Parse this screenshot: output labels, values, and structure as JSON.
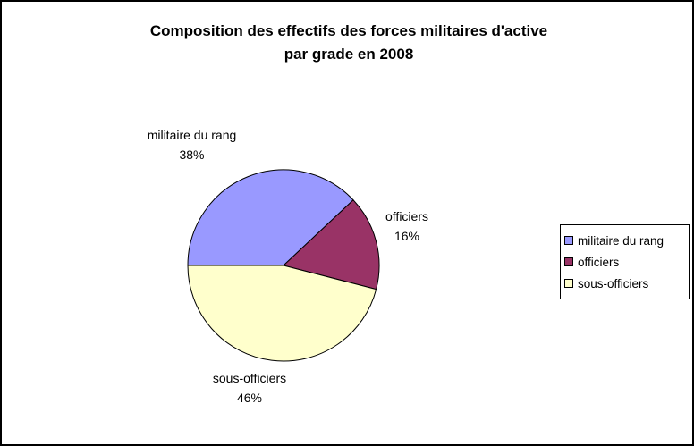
{
  "title": {
    "line1": "Composition des effectifs des forces militaires d'active",
    "line2": "par grade en 2008"
  },
  "chart_data": {
    "type": "pie",
    "title": "Composition des effectifs des forces militaires d'active par grade en 2008",
    "categories": [
      "militaire du rang",
      "officiers",
      "sous-officiers"
    ],
    "values": [
      38,
      16,
      46
    ],
    "colors": [
      "#9999FF",
      "#993366",
      "#FFFFCC"
    ],
    "start_angle_clockwise_from_top_deg": 270,
    "legend_position": "right",
    "slice_labels": [
      {
        "name": "militaire du rang",
        "pct": "38%"
      },
      {
        "name": "officiers",
        "pct": "16%"
      },
      {
        "name": "sous-officiers",
        "pct": "46%"
      }
    ]
  },
  "legend": {
    "items": [
      {
        "label": "militaire du rang",
        "color": "#9999FF"
      },
      {
        "label": "officiers",
        "color": "#993366"
      },
      {
        "label": "sous-officiers",
        "color": "#FFFFCC"
      }
    ]
  }
}
